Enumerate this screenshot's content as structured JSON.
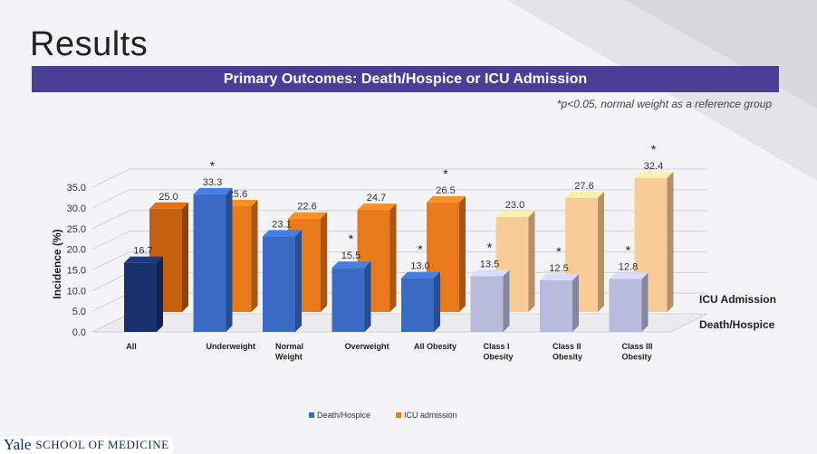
{
  "slide": {
    "title": "Results",
    "banner": "Primary Outcomes: Death/Hospice or ICU Admission",
    "footnote": "*p<0.05, normal weight as a reference group",
    "footer_brand": "Yale",
    "footer_school": "SCHOOL OF MEDICINE"
  },
  "chart_data": {
    "type": "bar",
    "style": "3d-clustered-depth",
    "ylabel": "Incidence (%)",
    "ylim": [
      0,
      35
    ],
    "yticks": [
      "0.0",
      "5.0",
      "10.0",
      "15.0",
      "20.0",
      "25.0",
      "30.0",
      "35.0"
    ],
    "categories": [
      "All",
      "Underweight",
      "Normal Weight",
      "Overweight",
      "All Obesity",
      "Class I Obesity",
      "Class II Obesity",
      "Class III Obesity"
    ],
    "category_lines": [
      [
        "All"
      ],
      [
        "Underweight"
      ],
      [
        "Normal",
        "Weight"
      ],
      [
        "Overweight"
      ],
      [
        "All Obesity"
      ],
      [
        "Class I",
        "Obesity"
      ],
      [
        "Class II",
        "Obesity"
      ],
      [
        "Class III",
        "Obesity"
      ]
    ],
    "series": [
      {
        "name": "Death/Hospice",
        "values": [
          16.7,
          33.3,
          23.1,
          15.5,
          13.0,
          13.5,
          12.5,
          12.8
        ],
        "labels": [
          "16.7",
          "33.3",
          "23.1",
          "15.5",
          "13.0",
          "13.5",
          "12.5",
          "12.8"
        ],
        "significant": [
          false,
          true,
          false,
          true,
          true,
          true,
          true,
          true
        ]
      },
      {
        "name": "ICU admission",
        "values": [
          25.0,
          25.6,
          22.6,
          24.7,
          26.5,
          23.0,
          27.6,
          32.4
        ],
        "labels": [
          "25.0",
          "25.6",
          "22.6",
          "24.7",
          "26.5",
          "23.0",
          "27.6",
          "32.4"
        ],
        "significant": [
          false,
          false,
          false,
          false,
          true,
          false,
          false,
          true
        ]
      }
    ],
    "depth_axis_labels": [
      "ICU Admission",
      "Death/Hospice"
    ],
    "legend": [
      "Death/Hospice",
      "ICU admission"
    ],
    "legend_position": "bottom",
    "significance_marker": "*",
    "grid": true,
    "colors": {
      "death": [
        "#1a2f6e",
        "#3a6bc4",
        "#3a6bc4",
        "#3a6bc4",
        "#3a6bc4",
        "#b9bbdc",
        "#b9bbdc",
        "#b9bbdc"
      ],
      "icu": [
        "#c4600e",
        "#e97a1c",
        "#e97a1c",
        "#e97a1c",
        "#e97a1c",
        "#f9cb95",
        "#f9cb95",
        "#f9cb95"
      ],
      "legend_death": "#3a6bc4",
      "legend_icu": "#e97a1c"
    }
  }
}
